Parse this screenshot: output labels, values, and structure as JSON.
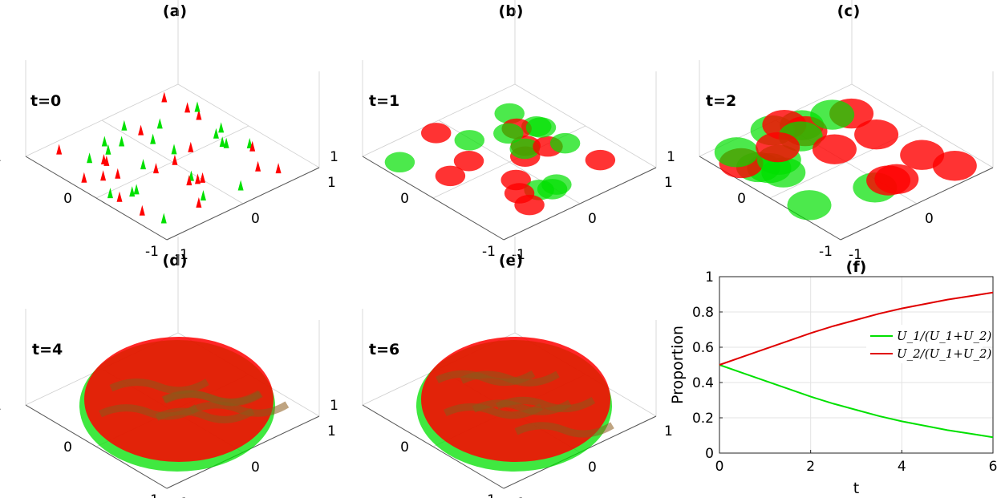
{
  "figure": {
    "panels": [
      {
        "id": "a",
        "title": "(a)",
        "time_label": "t=0",
        "stage": 0
      },
      {
        "id": "b",
        "title": "(b)",
        "time_label": "t=1",
        "stage": 1
      },
      {
        "id": "c",
        "title": "(c)",
        "time_label": "t=2",
        "stage": 2
      },
      {
        "id": "d",
        "title": "(d)",
        "time_label": "t=4",
        "stage": 4
      },
      {
        "id": "e",
        "title": "(e)",
        "time_label": "t=6",
        "stage": 6
      }
    ],
    "surface_axes": {
      "x_ticks": [
        "-1",
        "0",
        "1"
      ],
      "y_ticks": [
        "-1",
        "0",
        "1"
      ]
    },
    "colors": {
      "species1": "#00e000",
      "species2": "#ff0000"
    }
  },
  "chart_data": {
    "type": "line",
    "title": "(f)",
    "xlabel": "t",
    "ylabel": "Proportion",
    "xlim": [
      0,
      6
    ],
    "ylim": [
      0,
      1
    ],
    "x_ticks": [
      "0",
      "2",
      "4",
      "6"
    ],
    "y_ticks": [
      "0",
      "0.2",
      "0.4",
      "0.6",
      "0.8",
      "1"
    ],
    "grid": true,
    "legend_position": "middle-right",
    "x": [
      0,
      0.5,
      1,
      1.5,
      2,
      2.5,
      3,
      3.5,
      4,
      4.5,
      5,
      5.5,
      6
    ],
    "series": [
      {
        "name": "U_1/(U_1+U_2)",
        "color": "#00e000",
        "values": [
          0.5,
          0.455,
          0.41,
          0.365,
          0.32,
          0.28,
          0.245,
          0.21,
          0.18,
          0.155,
          0.13,
          0.11,
          0.09
        ]
      },
      {
        "name": "U_2/(U_1+U_2)",
        "color": "#e00000",
        "values": [
          0.5,
          0.545,
          0.59,
          0.635,
          0.68,
          0.72,
          0.755,
          0.79,
          0.82,
          0.845,
          0.87,
          0.89,
          0.91
        ]
      }
    ]
  }
}
